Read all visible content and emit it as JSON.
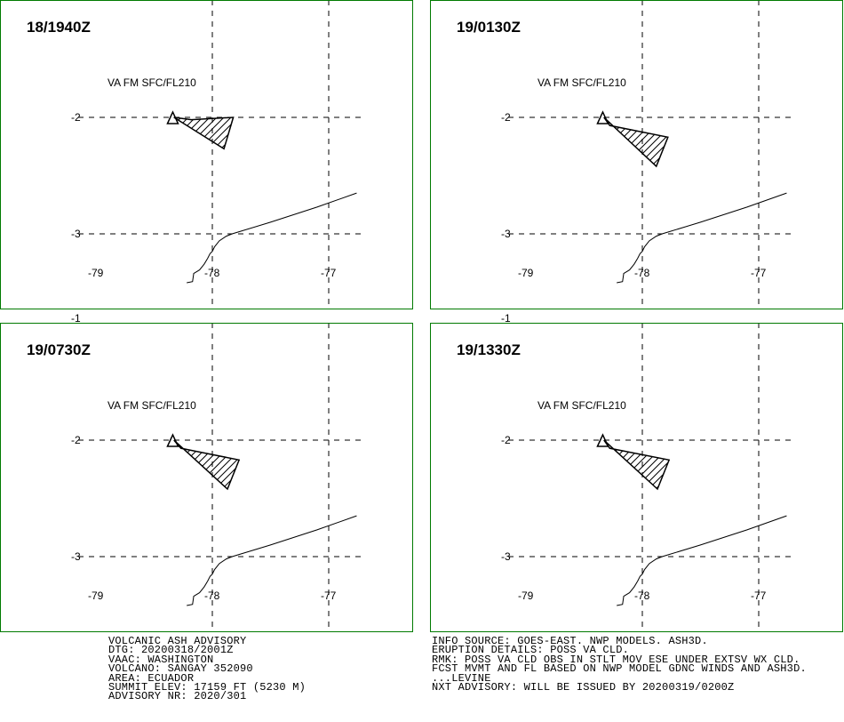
{
  "panels": [
    {
      "time": "18/1940Z",
      "level": "VA FM SFC/FL210",
      "plume": [
        [
          -78.33,
          -2.0
        ],
        [
          -78.18,
          -2.02
        ],
        [
          -77.82,
          -2.0
        ],
        [
          -77.9,
          -2.27
        ]
      ]
    },
    {
      "time": "19/0130Z",
      "level": "VA FM SFC/FL210",
      "plume": [
        [
          -78.33,
          -2.0
        ],
        [
          -78.28,
          -2.07
        ],
        [
          -77.78,
          -2.17
        ],
        [
          -77.88,
          -2.42
        ]
      ]
    },
    {
      "time": "19/0730Z",
      "level": "VA FM SFC/FL210",
      "plume": [
        [
          -78.33,
          -2.0
        ],
        [
          -78.27,
          -2.07
        ],
        [
          -77.77,
          -2.17
        ],
        [
          -77.87,
          -2.42
        ]
      ]
    },
    {
      "time": "19/1330Z",
      "level": "VA FM SFC/FL210",
      "plume": [
        [
          -78.33,
          -2.0
        ],
        [
          -78.28,
          -2.07
        ],
        [
          -77.77,
          -2.17
        ],
        [
          -77.87,
          -2.42
        ]
      ]
    }
  ],
  "map": {
    "lon_ticks": [
      "-79",
      "-78",
      "-77"
    ],
    "lat_ticks": [
      "-1",
      "-2",
      "-3"
    ],
    "volcano_lon": -78.34,
    "volcano_lat": -2.0,
    "coastline": [
      [
        -78.22,
        -3.42
      ],
      [
        -78.17,
        -3.41
      ],
      [
        -78.16,
        -3.34
      ],
      [
        -78.11,
        -3.31
      ],
      [
        -78.07,
        -3.26
      ],
      [
        -78.04,
        -3.21
      ],
      [
        -78.02,
        -3.17
      ],
      [
        -78.0,
        -3.15
      ],
      [
        -77.98,
        -3.11
      ],
      [
        -77.94,
        -3.06
      ],
      [
        -77.88,
        -3.02
      ],
      [
        -77.83,
        -3.0
      ],
      [
        -77.5,
        -2.9
      ],
      [
        -77.1,
        -2.77
      ],
      [
        -76.76,
        -2.65
      ]
    ]
  },
  "advisory_left": [
    "VOLCANIC ASH ADVISORY",
    "DTG: 20200318/2001Z",
    "VAAC: WASHINGTON",
    "VOLCANO: SANGAY 352090",
    "AREA: ECUADOR",
    "SUMMIT ELEV: 17159 FT (5230 M)",
    "ADVISORY NR: 2020/301"
  ],
  "advisory_right": [
    "INFO SOURCE: GOES-EAST. NWP MODELS. ASH3D.",
    "ERUPTION DETAILS: POSS VA CLD.",
    "RMK: POSS VA CLD OBS IN STLT MOV ESE UNDER EXTSV WX CLD.",
    "FCST MVMT AND FL BASED ON NWP MODEL GDNC WINDS AND ASH3D.",
    "...LEVINE",
    "NXT ADVISORY: WILL BE ISSUED BY 20200319/0200Z"
  ],
  "colors": {
    "frame": "#007a00",
    "plume": "#000000",
    "grid": "#000000"
  }
}
